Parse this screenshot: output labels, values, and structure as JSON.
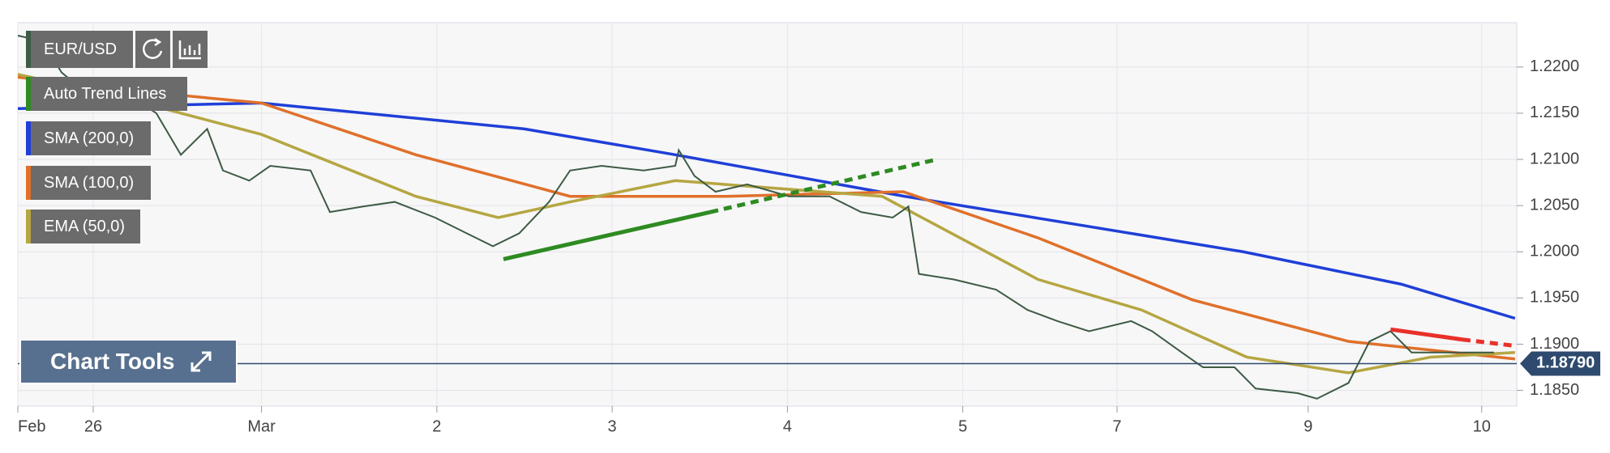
{
  "chart_data": {
    "type": "line",
    "xlim": [
      -1.39,
      7.16
    ],
    "ylim": [
      1.1833,
      1.2248
    ],
    "grid": true,
    "xticks": [
      {
        "value": -1.39,
        "label": "Feb"
      },
      {
        "value": -0.96,
        "label": "26"
      },
      {
        "value": 0,
        "label": "Mar"
      },
      {
        "value": 1,
        "label": "2"
      },
      {
        "value": 2,
        "label": "3"
      },
      {
        "value": 3,
        "label": "4"
      },
      {
        "value": 4,
        "label": "5"
      },
      {
        "value": 4.88,
        "label": "7"
      },
      {
        "value": 5.97,
        "label": "9"
      },
      {
        "value": 6.96,
        "label": "10"
      }
    ],
    "yticks": [
      {
        "value": 1.22,
        "label": "1.2200"
      },
      {
        "value": 1.215,
        "label": "1.2150"
      },
      {
        "value": 1.21,
        "label": "1.2100"
      },
      {
        "value": 1.205,
        "label": "1.2050"
      },
      {
        "value": 1.2,
        "label": "1.2000"
      },
      {
        "value": 1.195,
        "label": "1.1950"
      },
      {
        "value": 1.19,
        "label": "1.1900"
      },
      {
        "value": 1.185,
        "label": "1.1850"
      }
    ],
    "series": [
      {
        "name": "EUR/USD",
        "color": "#3d5a45",
        "x": [
          -1.39,
          -1.25,
          -1.14,
          -0.96,
          -0.78,
          -0.6,
          -0.46,
          -0.31,
          -0.22,
          -0.07,
          0.05,
          0.28,
          0.39,
          0.58,
          0.76,
          0.99,
          1.17,
          1.32,
          1.47,
          1.64,
          1.76,
          1.94,
          2.18,
          2.36,
          2.38,
          2.47,
          2.59,
          2.77,
          3.01,
          3.24,
          3.42,
          3.6,
          3.69,
          3.75,
          3.95,
          4.19,
          4.37,
          4.54,
          4.72,
          4.96,
          5.08,
          5.25,
          5.37,
          5.55,
          5.67,
          5.91,
          6.02,
          6.2,
          6.32,
          6.44,
          6.56,
          6.79,
          7.03
        ],
        "values": [
          1.2234,
          1.2228,
          1.2194,
          1.2166,
          1.2172,
          1.215,
          1.2105,
          1.2133,
          1.2088,
          1.2077,
          1.2093,
          1.2088,
          1.2043,
          1.2049,
          1.2054,
          1.2037,
          1.202,
          1.2006,
          1.202,
          1.2054,
          1.2088,
          1.2093,
          1.2088,
          1.2093,
          1.211,
          1.2082,
          1.2065,
          1.2073,
          1.206,
          1.206,
          1.2043,
          1.2037,
          1.2049,
          1.1976,
          1.197,
          1.1959,
          1.1937,
          1.1925,
          1.1914,
          1.1925,
          1.1914,
          1.1891,
          1.1875,
          1.1875,
          1.1852,
          1.1847,
          1.1841,
          1.1858,
          1.1903,
          1.1914,
          1.1891,
          1.1891,
          1.1891
        ]
      },
      {
        "name": "SMA (200,0)",
        "color": "#1f3fd8",
        "x": [
          -1.39,
          0,
          1.5,
          2.36,
          3.67,
          5.6,
          6.5,
          7.15
        ],
        "values": [
          1.2155,
          1.2161,
          1.2133,
          1.2105,
          1.206,
          1.2,
          1.1965,
          1.1928
        ]
      },
      {
        "name": "SMA (100,0)",
        "color": "#e0702a",
        "x": [
          -1.39,
          -0.72,
          0,
          0.88,
          1.76,
          2.65,
          3.66,
          4.43,
          5.31,
          6.2,
          7.15
        ],
        "values": [
          1.2189,
          1.2174,
          1.2161,
          1.2105,
          1.206,
          1.206,
          1.2065,
          1.2015,
          1.1948,
          1.1903,
          1.1884
        ]
      },
      {
        "name": "EMA (50,0)",
        "color": "#b5a642",
        "x": [
          -1.39,
          -0.9,
          0,
          0.88,
          1.35,
          1.76,
          2.36,
          3.54,
          4.43,
          5.02,
          5.62,
          6.2,
          6.67,
          7.15
        ],
        "values": [
          1.2192,
          1.2172,
          1.2127,
          1.206,
          1.2037,
          1.2054,
          1.2077,
          1.206,
          1.197,
          1.1937,
          1.1886,
          1.1869,
          1.1886,
          1.1891
        ]
      }
    ],
    "trend_lines": {
      "name": "Auto Trend Lines",
      "lines": [
        {
          "color": "#2e8b22",
          "x": [
            1.38,
            2.56,
            3.83
          ],
          "values": [
            1.1992,
            1.2043,
            1.2099
          ]
        },
        {
          "color": "#e8312a",
          "x": [
            6.44,
            6.85,
            7.16
          ],
          "values": [
            1.1916,
            1.1905,
            1.1898
          ]
        }
      ]
    },
    "last_price": {
      "value": 1.1879,
      "label": "1.18790"
    }
  },
  "chart_tools": "Chart Tools"
}
